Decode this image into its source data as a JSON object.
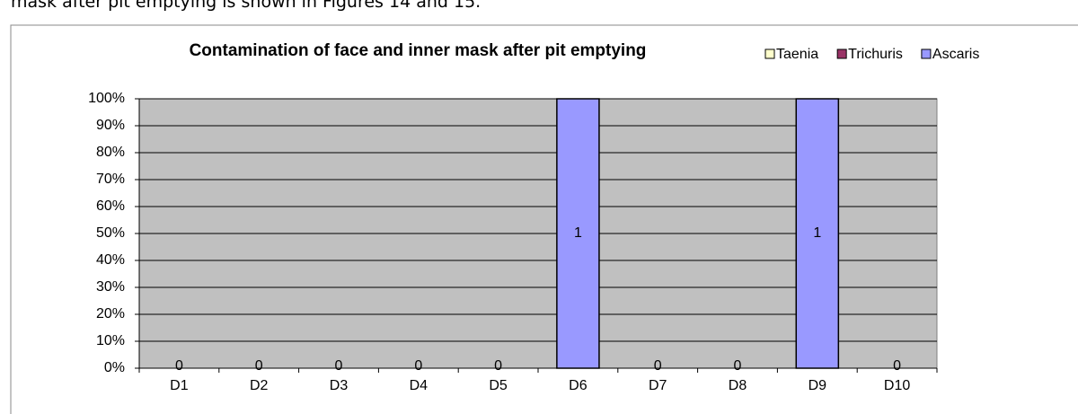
{
  "intro_text": "mask after pit emptying is shown in Figures 14 and 15.",
  "chart_data": {
    "type": "bar",
    "stacking": "percent",
    "title": "Contamination of face and inner mask after pit emptying",
    "categories": [
      "D1",
      "D2",
      "D3",
      "D4",
      "D5",
      "D6",
      "D7",
      "D8",
      "D9",
      "D10"
    ],
    "series": [
      {
        "name": "Taenia",
        "color": "#ffffcc",
        "values": [
          0,
          0,
          0,
          0,
          0,
          0,
          0,
          0,
          0,
          0
        ]
      },
      {
        "name": "Trichuris",
        "color": "#993366",
        "values": [
          0,
          0,
          0,
          0,
          0,
          0,
          0,
          0,
          0,
          0
        ]
      },
      {
        "name": "Ascaris",
        "color": "#9999ff",
        "values": [
          0,
          0,
          0,
          0,
          0,
          1,
          0,
          0,
          1,
          0
        ]
      }
    ],
    "ylim": [
      0,
      100
    ],
    "yticks": [
      {
        "value": 0,
        "label": "0%"
      },
      {
        "value": 10,
        "label": "10%"
      },
      {
        "value": 20,
        "label": "20%"
      },
      {
        "value": 30,
        "label": "30%"
      },
      {
        "value": 40,
        "label": "40%"
      },
      {
        "value": 50,
        "label": "50%"
      },
      {
        "value": 60,
        "label": "60%"
      },
      {
        "value": 70,
        "label": "70%"
      },
      {
        "value": 80,
        "label": "80%"
      },
      {
        "value": 90,
        "label": "90%"
      },
      {
        "value": 100,
        "label": "100%"
      }
    ],
    "grid": true,
    "plot_background": "#c0c0c0",
    "legend": "top-right"
  }
}
